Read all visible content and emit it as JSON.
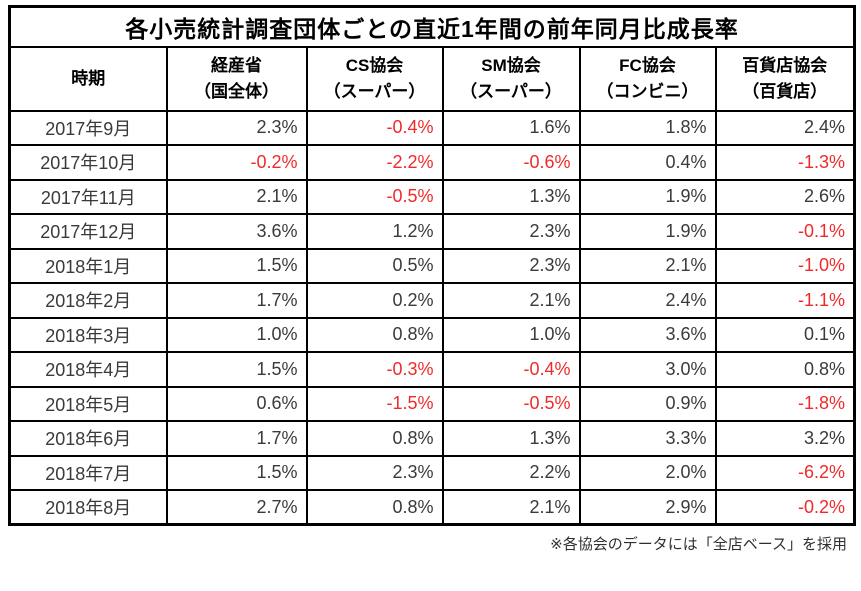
{
  "title": "各小売統計調査団体ごとの直近1年間の前年同月比成長率",
  "footnote": "※各協会のデータには「全店ベース」を採用",
  "colors": {
    "negative_value": "#f02a2a",
    "normal_value": "#3a3a3a",
    "border": "#000000",
    "background": "#ffffff"
  },
  "chart_data": {
    "type": "table",
    "title": "各小売統計調査団体ごとの直近1年間の前年同月比成長率",
    "columns": [
      {
        "name": "時期",
        "sub": ""
      },
      {
        "name": "経産省",
        "sub": "（国全体）"
      },
      {
        "name": "CS協会",
        "sub": "（スーパー）"
      },
      {
        "name": "SM協会",
        "sub": "（スーパー）"
      },
      {
        "name": "FC協会",
        "sub": "（コンビニ）"
      },
      {
        "name": "百貨店協会",
        "sub": "（百貨店）"
      }
    ],
    "rows": [
      {
        "period": "2017年9月",
        "values": [
          "2.3%",
          "-0.4%",
          "1.6%",
          "1.8%",
          "2.4%"
        ]
      },
      {
        "period": "2017年10月",
        "values": [
          "-0.2%",
          "-2.2%",
          "-0.6%",
          "0.4%",
          "-1.3%"
        ]
      },
      {
        "period": "2017年11月",
        "values": [
          "2.1%",
          "-0.5%",
          "1.3%",
          "1.9%",
          "2.6%"
        ]
      },
      {
        "period": "2017年12月",
        "values": [
          "3.6%",
          "1.2%",
          "2.3%",
          "1.9%",
          "-0.1%"
        ]
      },
      {
        "period": "2018年1月",
        "values": [
          "1.5%",
          "0.5%",
          "2.3%",
          "2.1%",
          "-1.0%"
        ]
      },
      {
        "period": "2018年2月",
        "values": [
          "1.7%",
          "0.2%",
          "2.1%",
          "2.4%",
          "-1.1%"
        ]
      },
      {
        "period": "2018年3月",
        "values": [
          "1.0%",
          "0.8%",
          "1.0%",
          "3.6%",
          "0.1%"
        ]
      },
      {
        "period": "2018年4月",
        "values": [
          "1.5%",
          "-0.3%",
          "-0.4%",
          "3.0%",
          "0.8%"
        ]
      },
      {
        "period": "2018年5月",
        "values": [
          "0.6%",
          "-1.5%",
          "-0.5%",
          "0.9%",
          "-1.8%"
        ]
      },
      {
        "period": "2018年6月",
        "values": [
          "1.7%",
          "0.8%",
          "1.3%",
          "3.3%",
          "3.2%"
        ]
      },
      {
        "period": "2018年7月",
        "values": [
          "1.5%",
          "2.3%",
          "2.2%",
          "2.0%",
          "-6.2%"
        ]
      },
      {
        "period": "2018年8月",
        "values": [
          "2.7%",
          "0.8%",
          "2.1%",
          "2.9%",
          "-0.2%"
        ]
      }
    ]
  }
}
